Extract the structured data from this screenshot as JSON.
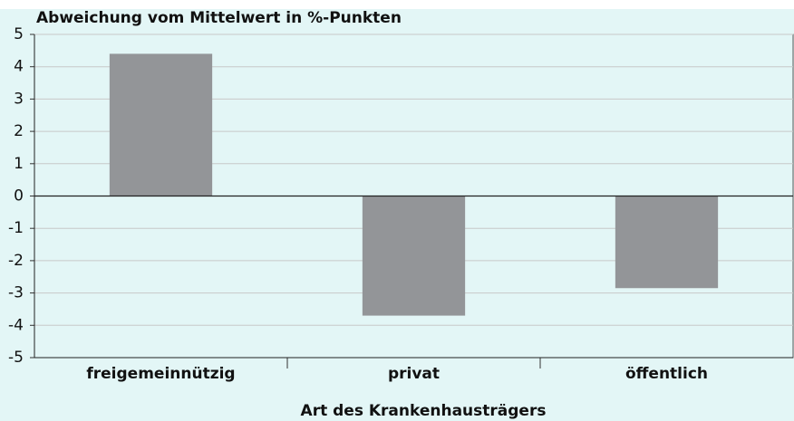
{
  "chart_data": {
    "type": "bar",
    "title": "Abweichung vom Mittelwert in %-Punkten",
    "x_label": "Art des Krankenhausträgers",
    "categories": [
      "freigemeinnützig",
      "privat",
      "öffentlich"
    ],
    "values": [
      4.4,
      -3.7,
      -2.85
    ],
    "color": "#939598",
    "ylim": [
      -5,
      5
    ],
    "yticks": [
      -5,
      -4,
      -3,
      -2,
      -1,
      0,
      1,
      2,
      3,
      4,
      5
    ],
    "grid": true
  }
}
